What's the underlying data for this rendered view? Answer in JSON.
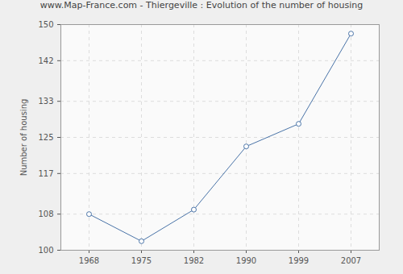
{
  "chart_data": {
    "type": "line",
    "title": "www.Map-France.com - Thiergeville : Evolution of the number of housing",
    "y_label": "Number of housing",
    "categories": [
      "1968",
      "1975",
      "1982",
      "1990",
      "1999",
      "2007"
    ],
    "values": [
      108,
      102,
      109,
      123,
      128,
      148
    ],
    "color": "#4a74a8",
    "marker": "circle",
    "ylim": [
      100,
      150
    ],
    "yticks": [
      100,
      108,
      117,
      125,
      133,
      142,
      150
    ],
    "grid": true
  }
}
